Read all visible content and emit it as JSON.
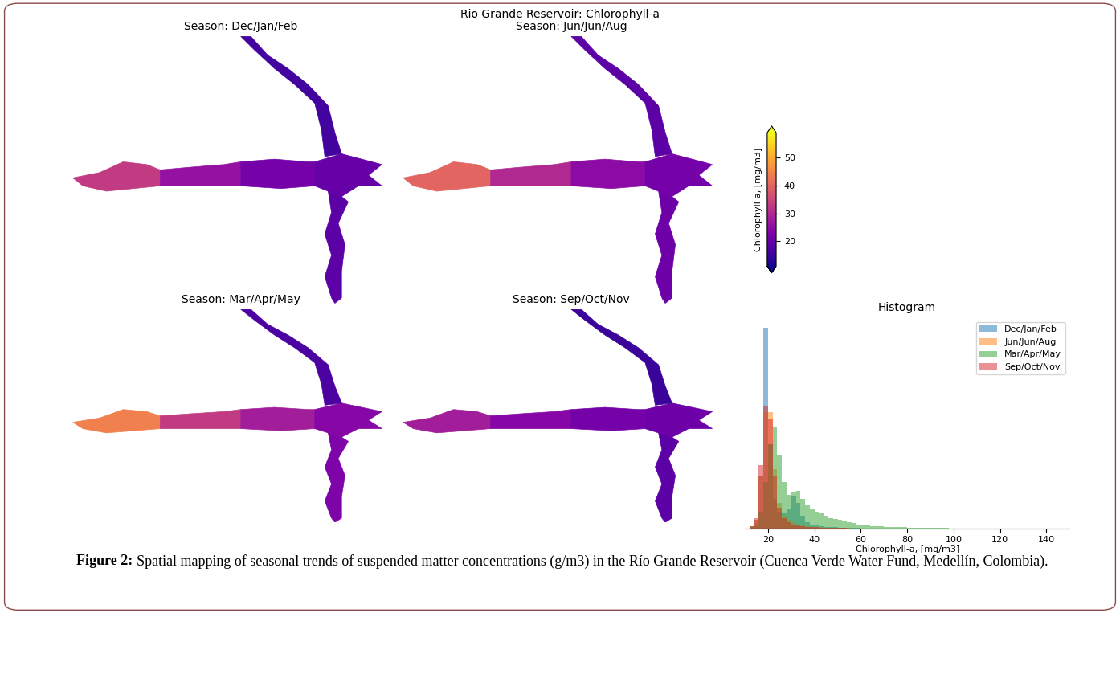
{
  "title": "Rio Grande Reservoir: Chlorophyll-a",
  "caption": {
    "label": "Figure 2:",
    "text": "Spatial mapping of seasonal trends of suspended matter concentrations (g/m3) in the Río Grande Reservoir (Cuenca Verde Water Fund, Medellín, Colombia)."
  },
  "chart_data": [
    {
      "type": "map",
      "title": "Season: Dec/Jan/Feb",
      "cells": [
        33,
        26,
        22,
        20,
        16,
        19
      ]
    },
    {
      "type": "map",
      "title": "Season: Jun/Jun/Aug",
      "cells": [
        40,
        30,
        25,
        22,
        19,
        21
      ]
    },
    {
      "type": "map",
      "title": "Season: Mar/Apr/May",
      "cells": [
        44,
        33,
        28,
        24,
        17,
        23
      ]
    },
    {
      "type": "map",
      "title": "Season: Sep/Oct/Nov",
      "cells": [
        28,
        24,
        22,
        21,
        15,
        19
      ]
    },
    {
      "type": "colorbar",
      "label": "Chlorophyll-a, [mg/m3]",
      "range": [
        11,
        59
      ],
      "ticks": [
        20,
        30,
        40,
        50
      ],
      "color": "plasma"
    },
    {
      "type": "histogram",
      "title": "Histogram",
      "xlabel": "Chlorophyll-a, [mg/m3]",
      "xlim": [
        10,
        150
      ],
      "xticks": [
        20,
        40,
        60,
        80,
        100,
        120,
        140
      ],
      "ylim": [
        0,
        100
      ],
      "tick_labels": "x",
      "legend": "upper right",
      "bins": [
        10,
        12,
        14,
        16,
        18,
        20,
        22,
        24,
        26,
        28,
        30,
        32,
        34,
        36,
        38,
        40,
        42,
        44,
        46,
        48,
        50,
        52,
        54,
        56,
        58,
        60,
        62,
        64,
        66,
        68,
        70,
        72,
        74,
        76,
        78,
        80,
        82,
        84,
        86,
        88,
        90,
        92,
        94,
        96,
        98,
        100,
        102,
        104,
        106,
        108,
        110,
        112,
        114,
        116,
        118,
        120,
        122,
        124,
        126,
        128,
        130,
        132,
        134,
        136,
        138,
        140,
        142,
        144,
        146,
        148,
        150
      ],
      "series": [
        {
          "name": "Dec/Jan/Feb",
          "color": "#1f77b4",
          "values": [
            0,
            1,
            4,
            25,
            95,
            40,
            14,
            8,
            7,
            9,
            15,
            12,
            6,
            3,
            2,
            1.5,
            1,
            0.8,
            0.6,
            0.5,
            0.4,
            0.3,
            0.3,
            0.2,
            0.2,
            0.1,
            0.1,
            0.1,
            0.1,
            0.1,
            0.1,
            0.1,
            0.1,
            0.1,
            0.1,
            0,
            0,
            0,
            0,
            0,
            0,
            0,
            0,
            0,
            0,
            0,
            0,
            0,
            0,
            0,
            0,
            0,
            0,
            0,
            0,
            0,
            0,
            0,
            0,
            0,
            0,
            0,
            0,
            0,
            0,
            0,
            0,
            0,
            0,
            0
          ]
        },
        {
          "name": "Jun/Jun/Aug",
          "color": "#ff7f0e",
          "values": [
            0,
            1,
            4,
            25,
            55,
            55,
            28,
            12,
            6,
            4,
            3,
            2,
            1.5,
            1,
            0.8,
            0.6,
            0.5,
            0.4,
            0.3,
            0.3,
            0.2,
            0.2,
            0.2,
            0.1,
            0.1,
            0.1,
            0.1,
            0.1,
            0.1,
            0.1,
            0.1,
            0.1,
            0.1,
            0.1,
            0.1,
            0,
            0,
            0,
            0,
            0,
            0,
            0,
            0,
            0,
            0,
            0,
            0,
            0,
            0,
            0,
            0,
            0,
            0,
            0,
            0,
            0,
            0,
            0,
            0,
            0,
            0,
            0,
            0,
            0,
            0,
            0,
            0,
            0,
            0,
            0
          ]
        },
        {
          "name": "Mar/Apr/May",
          "color": "#2ca02c",
          "values": [
            0,
            0.5,
            2,
            8,
            22,
            40,
            48,
            35,
            22,
            16,
            17,
            18,
            14,
            11,
            9,
            8,
            7,
            6,
            5,
            4.5,
            4,
            3.5,
            3,
            2.5,
            2,
            1.8,
            1.5,
            1.2,
            1,
            0.9,
            0.8,
            0.7,
            0.6,
            0.5,
            0.5,
            0.4,
            0.4,
            0.3,
            0.3,
            0.3,
            0.2,
            0.2,
            0.2,
            0.2,
            0.1,
            0.1,
            0.1,
            0.1,
            0.1,
            0.1,
            0.1,
            0.1,
            0.1,
            0.1,
            0.1,
            0.1,
            0.1,
            0.1,
            0.1,
            0.1,
            0.1,
            0.1,
            0.1,
            0.1,
            0.1,
            0.1,
            0.1,
            0.1,
            0.1,
            0
          ]
        },
        {
          "name": "Sep/Oct/Nov",
          "color": "#d62728",
          "values": [
            0,
            1,
            5,
            30,
            58,
            52,
            25,
            10,
            5,
            3,
            2,
            1.5,
            1,
            0.8,
            0.6,
            0.5,
            0.4,
            0.3,
            0.3,
            0.2,
            0.2,
            0.2,
            0.1,
            0.1,
            0.1,
            0.1,
            0.1,
            0.1,
            0.1,
            0.1,
            0.1,
            0.1,
            0.1,
            0.1,
            0,
            0,
            0,
            0,
            0,
            0,
            0,
            0,
            0,
            0,
            0,
            0,
            0,
            0,
            0,
            0,
            0,
            0,
            0,
            0,
            0,
            0,
            0,
            0,
            0,
            0,
            0,
            0,
            0,
            0,
            0,
            0,
            0,
            0,
            0,
            0
          ]
        }
      ]
    }
  ]
}
